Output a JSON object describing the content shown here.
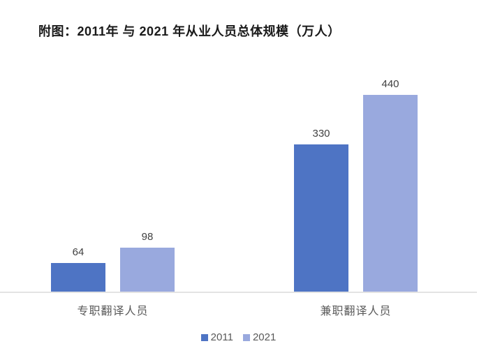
{
  "title": "附图：2011年 与 2021 年从业人员总体规模（万人）",
  "chart_data": {
    "type": "bar",
    "title": "附图：2011年 与 2021 年从业人员总体规模（万人）",
    "categories": [
      "专职翻译人员",
      "兼职翻译人员"
    ],
    "series": [
      {
        "name": "2011",
        "values": [
          64,
          330
        ],
        "color": "#4E74C4"
      },
      {
        "name": "2021",
        "values": [
          98,
          440
        ],
        "color": "#99A9DE"
      }
    ],
    "value_labels": [
      [
        "64",
        "330"
      ],
      [
        "98",
        "440"
      ]
    ],
    "xlabel": "",
    "ylabel": "",
    "ylim": [
      0,
      520
    ],
    "grid": false,
    "y_axis_visible": false,
    "axis_line_color": "#E3E3E3",
    "legend_position": "bottom",
    "legend_entries": [
      "2011",
      "2021"
    ]
  },
  "colors": {
    "background": "#FFFFFF",
    "title_text": "#1A1A1A",
    "value_label_text": "#404040",
    "category_text": "#595959",
    "legend_text": "#595959"
  }
}
